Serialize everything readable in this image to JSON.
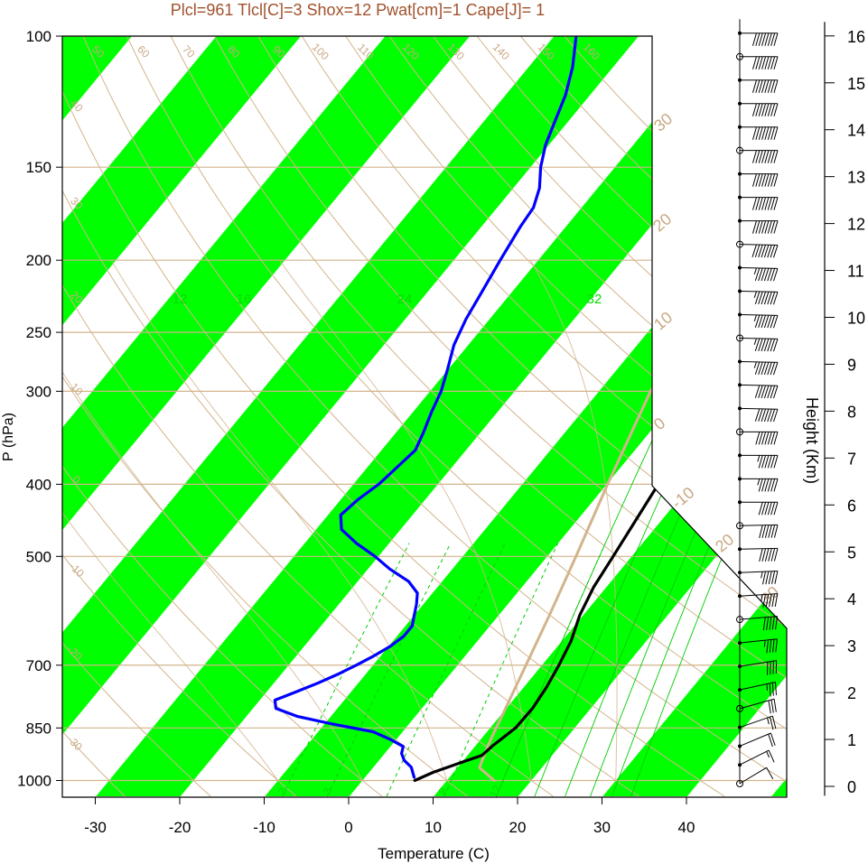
{
  "header": {
    "title": "Plcl=961 Tlcl[C]=3 Shox=12 Pwat[cm]=1 Cape[J]= 1",
    "title_color": "#a0522d"
  },
  "chart_data": {
    "type": "line",
    "subtype": "skew-T log-P sounding",
    "xlabel": "Temperature (C)",
    "ylabel": "P (hPa)",
    "y2label": "Height (Km)",
    "xlim": [
      -33,
      50
    ],
    "ylim_hpa": [
      1050,
      100
    ],
    "x_ticks": [
      "-30",
      "-20",
      "-10",
      "0",
      "10",
      "20",
      "30",
      "40"
    ],
    "p_ticks": [
      "100",
      "150",
      "200",
      "250",
      "300",
      "400",
      "500",
      "700",
      "850",
      "1000"
    ],
    "height_ticks": [
      "0",
      "1",
      "2",
      "3",
      "4",
      "5",
      "6",
      "7",
      "8",
      "9",
      "10",
      "11",
      "12",
      "13",
      "14",
      "15",
      "16"
    ],
    "grid": true,
    "colors": {
      "isotherm_band": "#00ff00",
      "dry_adiabat": "#d2b48c",
      "mixing_ratio": "#00cc00",
      "mixing_ratio_label": "#00dd00",
      "temperature": "#000000",
      "dewpoint": "#0000ff",
      "parcel": "#d2b48c",
      "title": "#a0522d"
    },
    "dry_adiabat_labels": [
      "-30",
      "-20",
      "-10",
      "0",
      "10",
      "20",
      "30",
      "40",
      "50",
      "60",
      "70",
      "80",
      "90",
      "100",
      "110",
      "120",
      "130",
      "140",
      "150",
      "160"
    ],
    "moist_adiabat_labels": [
      "-10",
      "0",
      "10",
      "20",
      "30"
    ],
    "mixing_ratio_labels_top": [
      "12",
      "16",
      "24",
      "32"
    ],
    "mixing_ratio_labels_bottom": [
      "2",
      "3",
      "8",
      "12"
    ],
    "series": [
      {
        "key": "temperature",
        "p": [
          1000,
          975,
          950,
          925,
          900,
          850,
          800,
          750,
          700,
          650,
          600,
          550,
          500,
          450,
          400,
          350,
          300,
          250,
          200,
          180,
          160,
          150,
          140,
          130,
          120,
          110,
          100
        ],
        "t": [
          6.2,
          7.6,
          9.6,
          11.7,
          12.0,
          13.0,
          13.1,
          12.7,
          12.0,
          11.1,
          9.6,
          8.5,
          7.8,
          7.0,
          6.1,
          5.0,
          4.1,
          3.3,
          2.8,
          3.3,
          4.2,
          5.0,
          5.8,
          6.8,
          8.2,
          9.6,
          11.7
        ]
      },
      {
        "key": "dewpoint",
        "p": [
          990,
          960,
          940,
          920,
          900,
          880,
          860,
          840,
          820,
          800,
          780,
          760,
          740,
          720,
          700,
          680,
          660,
          640,
          620,
          600,
          580,
          560,
          540,
          520,
          500,
          480,
          460,
          440,
          420,
          400,
          380,
          360,
          340,
          320,
          300,
          280,
          260,
          240,
          220,
          200,
          180,
          170,
          160,
          150,
          140,
          130,
          120,
          110,
          100
        ],
        "td": [
          5.8,
          4.5,
          3.0,
          2.0,
          1.5,
          -0.8,
          -3.5,
          -9.0,
          -14.0,
          -17.3,
          -18.2,
          -16.5,
          -14.8,
          -13.3,
          -12.0,
          -10.8,
          -9.8,
          -9.2,
          -9.2,
          -10.0,
          -10.8,
          -11.8,
          -14.0,
          -17.4,
          -20.4,
          -23.9,
          -27.0,
          -28.5,
          -28.0,
          -27.0,
          -26.5,
          -26.0,
          -26.8,
          -27.8,
          -28.7,
          -30.1,
          -31.7,
          -32.8,
          -33.6,
          -34.5,
          -35.4,
          -35.7,
          -36.9,
          -38.8,
          -40.4,
          -41.6,
          -42.9,
          -44.8,
          -47.4
        ]
      },
      {
        "key": "parcel",
        "p": [
          1000,
          961,
          900,
          850,
          800,
          700,
          600,
          500,
          400,
          300,
          230,
          200,
          150,
          120,
          100
        ],
        "t": [
          15.6,
          12.6,
          11.5,
          10.7,
          9.9,
          8.1,
          6.0,
          3.4,
          0.1,
          -3.9,
          -6.1,
          -3.1,
          2.0,
          5.7,
          8.6
        ]
      }
    ],
    "wind_profile": {
      "height_km": [
        0,
        0.4,
        0.8,
        1.2,
        1.6,
        2.0,
        2.5,
        3.0,
        3.5,
        4.0,
        4.5,
        5.0,
        5.5,
        6.0,
        6.5,
        7.0,
        7.5,
        8.0,
        8.5,
        9.0,
        9.5,
        10.0,
        10.5,
        11.0,
        11.5,
        12.0,
        12.5,
        13.0,
        13.5,
        14.0,
        14.5,
        15.0,
        15.5,
        16.0
      ],
      "direction_deg": [
        225,
        230,
        235,
        240,
        245,
        250,
        255,
        260,
        262,
        264,
        266,
        268,
        268,
        270,
        270,
        270,
        270,
        272,
        272,
        272,
        272,
        272,
        272,
        272,
        272,
        270,
        270,
        270,
        270,
        270,
        270,
        270,
        270,
        270
      ],
      "speed_kt": [
        10,
        15,
        20,
        25,
        30,
        35,
        40,
        45,
        50,
        55,
        55,
        60,
        60,
        60,
        65,
        65,
        70,
        70,
        70,
        75,
        75,
        75,
        75,
        75,
        80,
        80,
        80,
        80,
        80,
        80,
        80,
        80,
        80,
        80
      ]
    }
  }
}
